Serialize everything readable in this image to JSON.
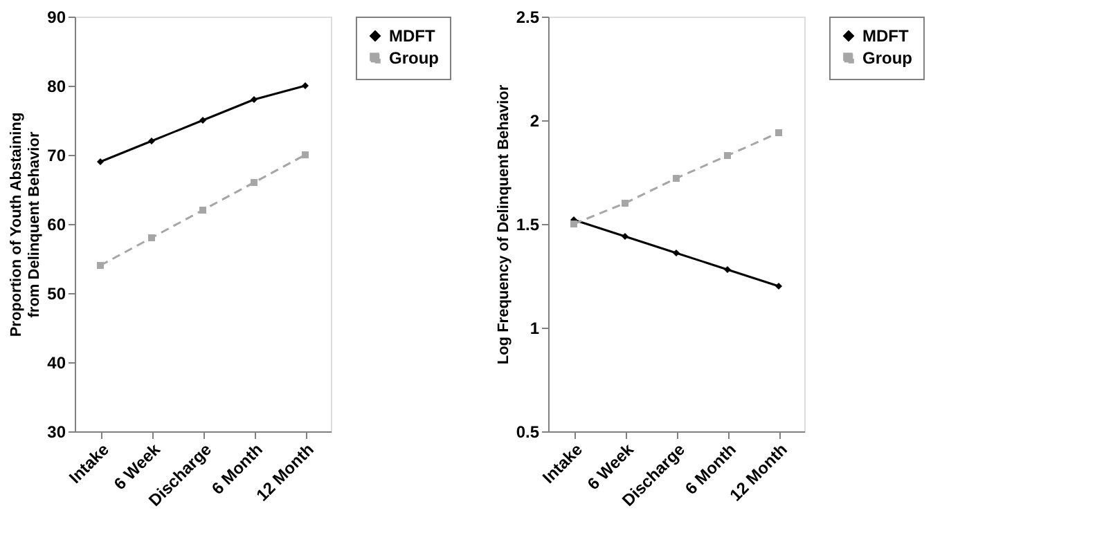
{
  "chart_data": [
    {
      "type": "line",
      "ylabel": "Proportion of Youth Abstaining from Delinquent Behavior",
      "categories": [
        "Intake",
        "6 Week",
        "Discharge",
        "6 Month",
        "12 Month"
      ],
      "ylim": [
        30,
        90
      ],
      "yticks": [
        30,
        40,
        50,
        60,
        70,
        80,
        90
      ],
      "grid": false,
      "legend": "right",
      "series": [
        {
          "name": "MDFT",
          "color": "#000000",
          "values": [
            69,
            72,
            75,
            78,
            80
          ],
          "marker": "diamond",
          "line_style": "solid"
        },
        {
          "name": "Group",
          "color": "#a6a6a6",
          "values": [
            54,
            58,
            62,
            66,
            70
          ],
          "marker": "square",
          "line_style": "dashed"
        }
      ]
    },
    {
      "type": "line",
      "ylabel": "Log Frequency of Delinquent Behavior",
      "categories": [
        "Intake",
        "6 Week",
        "Discharge",
        "6 Month",
        "12 Month"
      ],
      "ylim": [
        0.5,
        2.5
      ],
      "yticks": [
        0.5,
        1,
        1.5,
        2,
        2.5
      ],
      "grid": false,
      "legend": "right",
      "series": [
        {
          "name": "MDFT",
          "color": "#000000",
          "values": [
            1.52,
            1.44,
            1.36,
            1.28,
            1.2
          ],
          "marker": "diamond",
          "line_style": "solid"
        },
        {
          "name": "Group",
          "color": "#a6a6a6",
          "values": [
            1.5,
            1.6,
            1.72,
            1.83,
            1.94
          ],
          "marker": "square",
          "line_style": "dashed"
        }
      ]
    }
  ]
}
